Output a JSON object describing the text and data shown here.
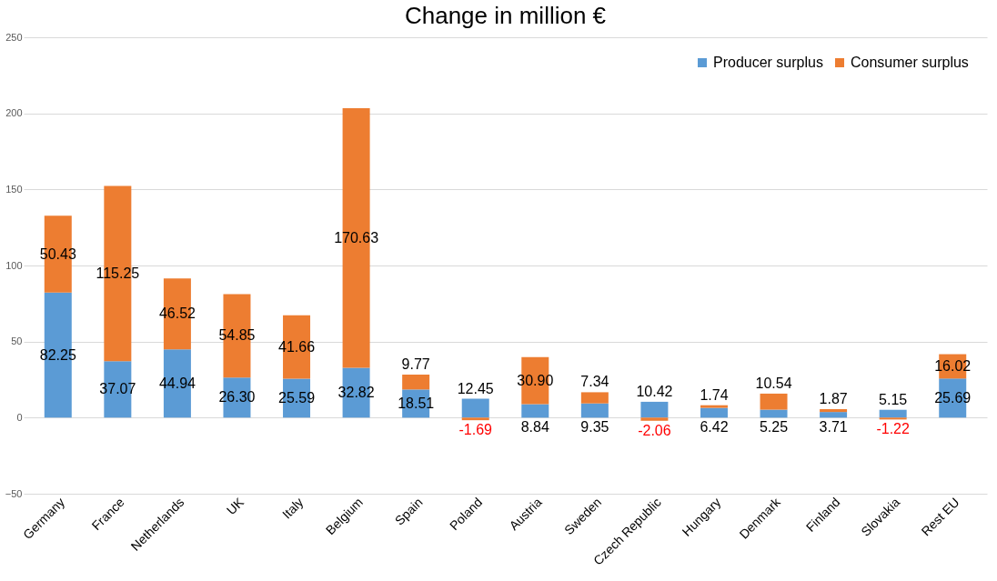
{
  "chart_data": {
    "type": "bar",
    "title": "Change in million €",
    "stacked": true,
    "categories": [
      "Germany",
      "France",
      "Netherlands",
      "UK",
      "Italy",
      "Belgium",
      "Spain",
      "Poland",
      "Austria",
      "Sweden",
      "Czech Republic",
      "Hungary",
      "Denmark",
      "Finland",
      "Slovakia",
      "Rest EU"
    ],
    "series": [
      {
        "name": "Producer surplus",
        "color": "#5b9bd5",
        "values": [
          82.25,
          37.07,
          44.94,
          26.3,
          25.59,
          32.82,
          18.51,
          12.45,
          8.84,
          9.35,
          10.42,
          6.42,
          5.25,
          3.71,
          5.15,
          25.69
        ],
        "value_labels": [
          "82.25",
          "37.07",
          "44.94",
          "26.30",
          "25.59",
          "32.82",
          "18.51",
          "12.45",
          "8.84",
          "9.35",
          "10.42",
          "6.42",
          "5.25",
          "3.71",
          "5.15",
          "25.69"
        ]
      },
      {
        "name": "Consumer surplus",
        "color": "#ed7d31",
        "values": [
          50.43,
          115.25,
          46.52,
          54.85,
          41.66,
          170.63,
          9.77,
          -1.69,
          30.9,
          7.34,
          -2.06,
          1.74,
          10.54,
          1.87,
          -1.22,
          16.02
        ],
        "value_labels": [
          "50.43",
          "115.25",
          "46.52",
          "54.85",
          "41.66",
          "170.63",
          "9.77",
          "-1.69",
          "30.90",
          "7.34",
          "-2.06",
          "1.74",
          "10.54",
          "1.87",
          "-1.22",
          "16.02"
        ]
      }
    ],
    "ylim": [
      -50,
      250
    ],
    "yticks": [
      -50,
      0,
      50,
      100,
      150,
      200,
      250
    ],
    "grid": "y",
    "legend": "top right"
  }
}
